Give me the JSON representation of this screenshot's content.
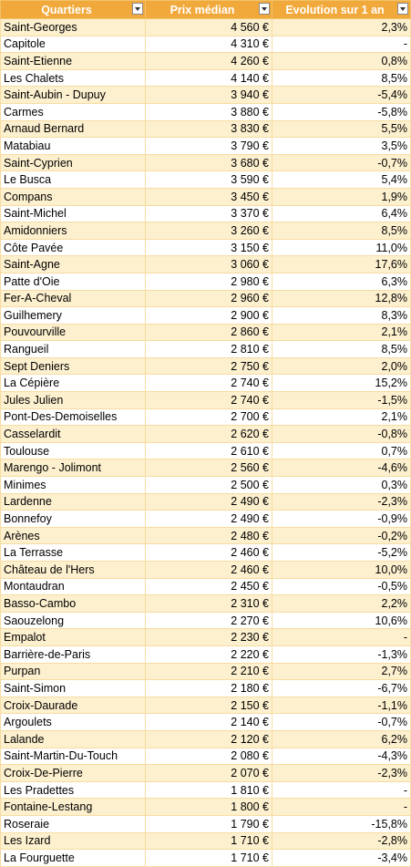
{
  "headers": [
    "Quartiers",
    "Prix médian",
    "Evolution sur 1 an"
  ],
  "rows": [
    [
      "Saint-Georges",
      "4 560 €",
      "2,3%"
    ],
    [
      "Capitole",
      "4 310 €",
      "-"
    ],
    [
      "Saint-Etienne",
      "4 260 €",
      "0,8%"
    ],
    [
      "Les Chalets",
      "4 140 €",
      "8,5%"
    ],
    [
      "Saint-Aubin - Dupuy",
      "3 940 €",
      "-5,4%"
    ],
    [
      "Carmes",
      "3 880 €",
      "-5,8%"
    ],
    [
      "Arnaud Bernard",
      "3 830 €",
      "5,5%"
    ],
    [
      "Matabiau",
      "3 790 €",
      "3,5%"
    ],
    [
      "Saint-Cyprien",
      "3 680 €",
      "-0,7%"
    ],
    [
      "Le Busca",
      "3 590 €",
      "5,4%"
    ],
    [
      "Compans",
      "3 450 €",
      "1,9%"
    ],
    [
      "Saint-Michel",
      "3 370 €",
      "6,4%"
    ],
    [
      "Amidonniers",
      "3 260 €",
      "8,5%"
    ],
    [
      "Côte Pavée",
      "3 150 €",
      "11,0%"
    ],
    [
      "Saint-Agne",
      "3 060 €",
      "17,6%"
    ],
    [
      "Patte d'Oie",
      "2 980 €",
      "6,3%"
    ],
    [
      "Fer-A-Cheval",
      "2 960 €",
      "12,8%"
    ],
    [
      "Guilhemery",
      "2 900 €",
      "8,3%"
    ],
    [
      "Pouvourville",
      "2 860 €",
      "2,1%"
    ],
    [
      "Rangueil",
      "2 810 €",
      "8,5%"
    ],
    [
      "Sept Deniers",
      "2 750 €",
      "2,0%"
    ],
    [
      "La Cépière",
      "2 740 €",
      "15,2%"
    ],
    [
      "Jules Julien",
      "2 740 €",
      "-1,5%"
    ],
    [
      "Pont-Des-Demoiselles",
      "2 700 €",
      "2,1%"
    ],
    [
      "Casselardit",
      "2 620 €",
      "-0,8%"
    ],
    [
      "Toulouse",
      "2 610 €",
      "0,7%"
    ],
    [
      "Marengo - Jolimont",
      "2 560 €",
      "-4,6%"
    ],
    [
      "Minimes",
      "2 500 €",
      "0,3%"
    ],
    [
      "Lardenne",
      "2 490 €",
      "-2,3%"
    ],
    [
      "Bonnefoy",
      "2 490 €",
      "-0,9%"
    ],
    [
      "Arènes",
      "2 480 €",
      "-0,2%"
    ],
    [
      "La Terrasse",
      "2 460 €",
      "-5,2%"
    ],
    [
      "Château de l'Hers",
      "2 460 €",
      "10,0%"
    ],
    [
      "Montaudran",
      "2 450 €",
      "-0,5%"
    ],
    [
      "Basso-Cambo",
      "2 310 €",
      "2,2%"
    ],
    [
      "Saouzelong",
      "2 270 €",
      "10,6%"
    ],
    [
      "Empalot",
      "2 230 €",
      "-"
    ],
    [
      "Barrière-de-Paris",
      "2 220 €",
      "-1,3%"
    ],
    [
      "Purpan",
      "2 210 €",
      "2,7%"
    ],
    [
      "Saint-Simon",
      "2 180 €",
      "-6,7%"
    ],
    [
      "Croix-Daurade",
      "2 150 €",
      "-1,1%"
    ],
    [
      "Argoulets",
      "2 140 €",
      "-0,7%"
    ],
    [
      "Lalande",
      "2 120 €",
      "6,2%"
    ],
    [
      "Saint-Martin-Du-Touch",
      "2 080 €",
      "-4,3%"
    ],
    [
      "Croix-De-Pierre",
      "2 070 €",
      "-2,3%"
    ],
    [
      "Les Pradettes",
      "1 810 €",
      "-"
    ],
    [
      "Fontaine-Lestang",
      "1 800 €",
      "-"
    ],
    [
      "Roseraie",
      "1 790 €",
      "-15,8%"
    ],
    [
      "Les Izard",
      "1 710 €",
      "-2,8%"
    ],
    [
      "La Fourguette",
      "1 710 €",
      "-3,4%"
    ]
  ]
}
